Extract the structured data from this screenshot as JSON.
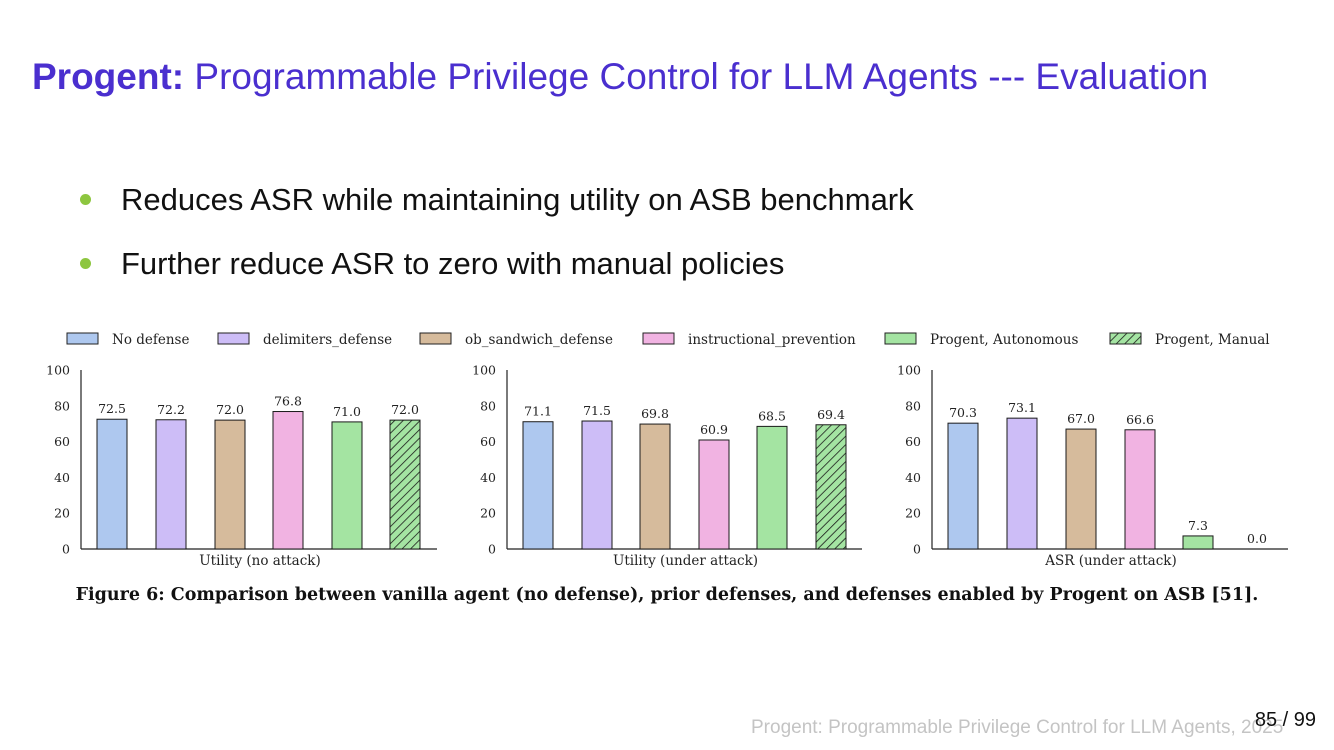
{
  "slide": {
    "title_bold": "Progent:",
    "title_rest": "Programmable Privilege Control for LLM Agents --- Evaluation",
    "bullets": [
      "Reduces ASR while maintaining utility on ASB benchmark",
      "Further reduce ASR to zero with manual policies"
    ],
    "footer": "Progent: Programmable Privilege Control for LLM Agents, 2025",
    "page_number": "85 / 99"
  },
  "figure": {
    "caption": "Figure 6: Comparison between vanilla agent (no defense), prior defenses, and defenses enabled by Progent on ASB [51]."
  },
  "legend": [
    {
      "name": "No defense",
      "color": "#aec8ef",
      "hatch": false
    },
    {
      "name": "delimiters_defense",
      "color": "#cdbdf7",
      "hatch": false
    },
    {
      "name": "ob_sandwich_defense",
      "color": "#d6bb9c",
      "hatch": false
    },
    {
      "name": "instructional_prevention",
      "color": "#f1b3e2",
      "hatch": false
    },
    {
      "name": "Progent, Autonomous",
      "color": "#a4e4a2",
      "hatch": false
    },
    {
      "name": "Progent, Manual",
      "color": "#a4e4a2",
      "hatch": true
    }
  ],
  "chart_data": [
    {
      "type": "bar",
      "xlabel": "Utility (no attack)",
      "ylim": [
        0,
        100
      ],
      "yticks": [
        0,
        20,
        40,
        60,
        80,
        100
      ],
      "categories": [
        "No defense",
        "delimiters_defense",
        "ob_sandwich_defense",
        "instructional_prevention",
        "Progent, Autonomous",
        "Progent, Manual"
      ],
      "values": [
        72.5,
        72.2,
        72.0,
        76.8,
        71.0,
        72.0
      ],
      "labels": [
        "72.5",
        "72.2",
        "72.0",
        "76.8",
        "71.0",
        "72.0"
      ]
    },
    {
      "type": "bar",
      "xlabel": "Utility (under attack)",
      "ylim": [
        0,
        100
      ],
      "yticks": [
        0,
        20,
        40,
        60,
        80,
        100
      ],
      "categories": [
        "No defense",
        "delimiters_defense",
        "ob_sandwich_defense",
        "instructional_prevention",
        "Progent, Autonomous",
        "Progent, Manual"
      ],
      "values": [
        71.1,
        71.5,
        69.8,
        60.9,
        68.5,
        69.4
      ],
      "labels": [
        "71.1",
        "71.5",
        "69.8",
        "60.9",
        "68.5",
        "69.4"
      ]
    },
    {
      "type": "bar",
      "xlabel": "ASR (under attack)",
      "ylim": [
        0,
        100
      ],
      "yticks": [
        0,
        20,
        40,
        60,
        80,
        100
      ],
      "categories": [
        "No defense",
        "delimiters_defense",
        "ob_sandwich_defense",
        "instructional_prevention",
        "Progent, Autonomous",
        "Progent, Manual"
      ],
      "values": [
        70.3,
        73.1,
        67.0,
        66.6,
        7.3,
        0.0
      ],
      "labels": [
        "70.3",
        "73.1",
        "67.0",
        "66.6",
        "7.3",
        "0.0"
      ]
    }
  ]
}
